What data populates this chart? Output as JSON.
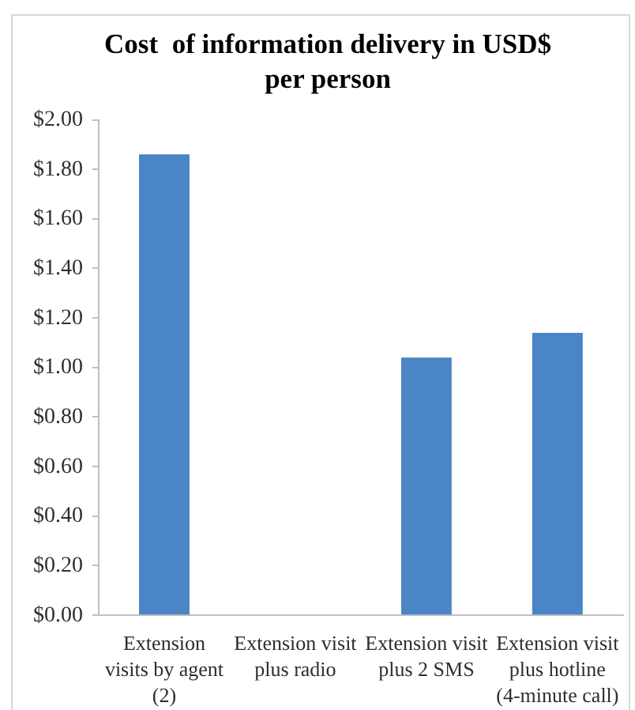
{
  "chart_data": {
    "type": "bar",
    "title": "Cost  of information delivery in USD$ per person",
    "categories": [
      "Extension visits by agent (2)",
      "Extension visit plus radio",
      "Extension visit plus 2 SMS",
      "Extension visit plus hotline (4-minute call)"
    ],
    "values": [
      1.86,
      0,
      1.04,
      1.14
    ],
    "color": "#4a85c5",
    "ylim": [
      0,
      2
    ],
    "yticks": [
      {
        "value": 0,
        "label": "$0.00"
      },
      {
        "value": 0.2,
        "label": "$0.20"
      },
      {
        "value": 0.4,
        "label": "$0.40"
      },
      {
        "value": 0.6,
        "label": "$0.60"
      },
      {
        "value": 0.8,
        "label": "$0.80"
      },
      {
        "value": 1,
        "label": "$1.00"
      },
      {
        "value": 1.2,
        "label": "$1.20"
      },
      {
        "value": 1.4,
        "label": "$1.40"
      },
      {
        "value": 1.6,
        "label": "$1.60"
      },
      {
        "value": 1.8,
        "label": "$1.80"
      },
      {
        "value": 2,
        "label": "$2.00"
      }
    ],
    "grid": false,
    "legend": false
  }
}
